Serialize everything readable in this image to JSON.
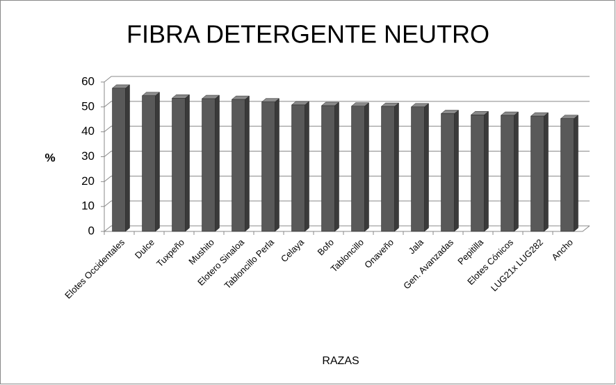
{
  "chart_data": {
    "type": "bar",
    "title": "FIBRA DETERGENTE NEUTRO",
    "xlabel": "RAZAS",
    "ylabel": "%",
    "categories": [
      "Elotes Occidentales",
      "Dulce",
      "Tuxpeño",
      "Mushito",
      "Elotero Sinaloa",
      "Tabloncillo Perla",
      "Celaya",
      "Bofo",
      "Tabloncillo",
      "Onaveño",
      "Jala",
      "Gen. Avanzadas",
      "Pepitilla",
      "Elotes Cónicos",
      "LUG21x LUG282",
      "Ancho"
    ],
    "values": [
      57.5,
      54.5,
      53.5,
      53.3,
      53,
      52,
      50.8,
      50.5,
      50.3,
      50.2,
      50,
      47.3,
      46.8,
      46.6,
      46.3,
      45.3
    ],
    "color": "#595959",
    "ylim": [
      0,
      60
    ],
    "yticks": [
      0,
      10,
      20,
      30,
      40,
      50,
      60
    ],
    "grid": true
  }
}
